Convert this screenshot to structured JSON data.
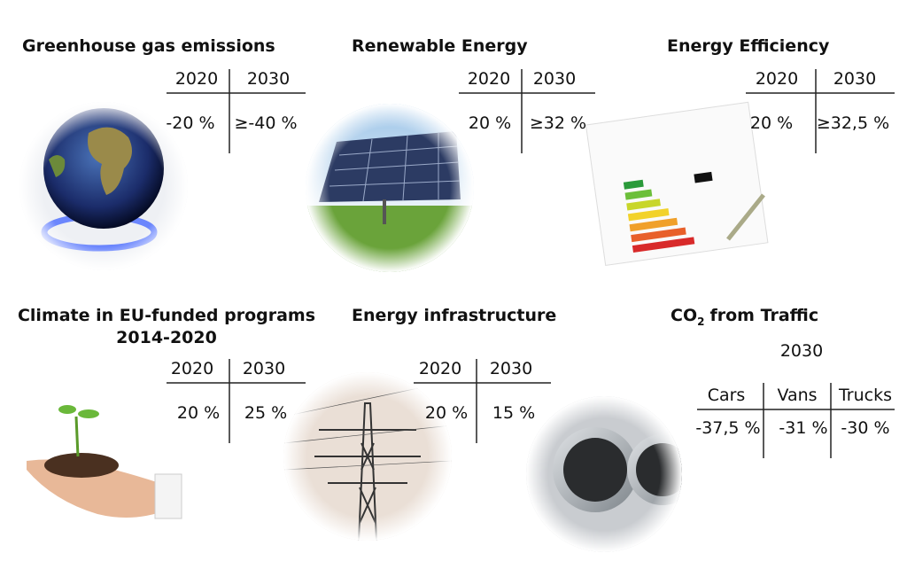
{
  "panels": [
    {
      "title": "Greenhouse gas emissions",
      "columns": [
        "2020",
        "2030"
      ],
      "values": [
        "-20 %",
        "≥-40 %"
      ]
    },
    {
      "title": "Renewable Energy",
      "columns": [
        "2020",
        "2030"
      ],
      "values": [
        "20 %",
        "≥32 %"
      ]
    },
    {
      "title": "Energy Efficiency",
      "columns": [
        "2020",
        "2030"
      ],
      "values": [
        "20 %",
        "≥32,5 %"
      ]
    },
    {
      "title": "Climate in EU-funded programs",
      "subtitle": "2014-2020",
      "columns": [
        "2020",
        "2030"
      ],
      "values": [
        "20 %",
        "25 %"
      ]
    },
    {
      "title": "Energy infrastructure",
      "columns": [
        "2020",
        "2030"
      ],
      "values": [
        "20 %",
        "15 %"
      ]
    },
    {
      "title": {
        "main": "CO",
        "subscript": "2",
        "rest": "from Traffic"
      },
      "year": "2030",
      "columns": [
        "Cars",
        "Vans",
        "Trucks"
      ],
      "values": [
        "-37,5 %",
        "-31 %",
        "-30 %"
      ]
    }
  ]
}
